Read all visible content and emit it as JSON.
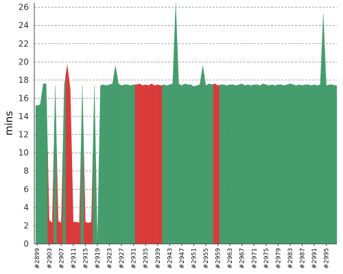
{
  "chart_data": {
    "type": "area",
    "title": "",
    "xlabel": "",
    "ylabel": "mins",
    "ylim": [
      0,
      26.5
    ],
    "yticks": [
      0,
      2,
      4,
      6,
      8,
      10,
      12,
      14,
      16,
      18,
      20,
      22,
      24,
      26
    ],
    "grid": true,
    "legend": "none",
    "colors": {
      "success": "#459c6c",
      "failure": "#d93a3a"
    },
    "x_tick_labels": [
      "#2899",
      "#2903",
      "#2907",
      "#2911",
      "#2915",
      "#2919",
      "#2923",
      "#2927",
      "#2931",
      "#2935",
      "#2939",
      "#2943",
      "#2947",
      "#2951",
      "#2955",
      "#2959",
      "#2963",
      "#2967",
      "#2971",
      "#2975",
      "#2979",
      "#2983",
      "#2987",
      "#2991",
      "#2995"
    ],
    "builds": [
      {
        "x": 2899,
        "y": 15.2,
        "status": "success"
      },
      {
        "x": 2900,
        "y": 15.3,
        "status": "success"
      },
      {
        "x": 2901,
        "y": 17.6,
        "status": "success"
      },
      {
        "x": 2902,
        "y": 17.6,
        "status": "success"
      },
      {
        "x": 2903,
        "y": 2.6,
        "status": "failure"
      },
      {
        "x": 2904,
        "y": 2.3,
        "status": "failure"
      },
      {
        "x": 2905,
        "y": 17.4,
        "status": "success"
      },
      {
        "x": 2906,
        "y": 2.5,
        "status": "failure"
      },
      {
        "x": 2907,
        "y": 2.3,
        "status": "failure"
      },
      {
        "x": 2908,
        "y": 17.5,
        "status": "success"
      },
      {
        "x": 2909,
        "y": 19.7,
        "status": "failure"
      },
      {
        "x": 2910,
        "y": 17.0,
        "status": "failure"
      },
      {
        "x": 2911,
        "y": 2.4,
        "status": "failure"
      },
      {
        "x": 2912,
        "y": 2.4,
        "status": "failure"
      },
      {
        "x": 2913,
        "y": 2.3,
        "status": "failure"
      },
      {
        "x": 2914,
        "y": 17.4,
        "status": "success"
      },
      {
        "x": 2915,
        "y": 2.4,
        "status": "failure"
      },
      {
        "x": 2916,
        "y": 2.3,
        "status": "failure"
      },
      {
        "x": 2917,
        "y": 2.4,
        "status": "failure"
      },
      {
        "x": 2918,
        "y": 17.4,
        "status": "success"
      },
      {
        "x": 2919,
        "y": 0.0,
        "status": "success"
      },
      {
        "x": 2920,
        "y": 17.4,
        "status": "success"
      },
      {
        "x": 2921,
        "y": 17.5,
        "status": "success"
      },
      {
        "x": 2922,
        "y": 17.4,
        "status": "success"
      },
      {
        "x": 2923,
        "y": 17.5,
        "status": "success"
      },
      {
        "x": 2924,
        "y": 17.6,
        "status": "success"
      },
      {
        "x": 2925,
        "y": 19.6,
        "status": "success"
      },
      {
        "x": 2926,
        "y": 17.6,
        "status": "success"
      },
      {
        "x": 2927,
        "y": 17.4,
        "status": "success"
      },
      {
        "x": 2928,
        "y": 17.5,
        "status": "success"
      },
      {
        "x": 2929,
        "y": 17.5,
        "status": "success"
      },
      {
        "x": 2930,
        "y": 17.4,
        "status": "success"
      },
      {
        "x": 2931,
        "y": 17.5,
        "status": "success"
      },
      {
        "x": 2932,
        "y": 17.5,
        "status": "failure"
      },
      {
        "x": 2933,
        "y": 17.6,
        "status": "failure"
      },
      {
        "x": 2934,
        "y": 17.4,
        "status": "failure"
      },
      {
        "x": 2935,
        "y": 17.5,
        "status": "failure"
      },
      {
        "x": 2936,
        "y": 17.4,
        "status": "failure"
      },
      {
        "x": 2937,
        "y": 17.6,
        "status": "failure"
      },
      {
        "x": 2938,
        "y": 17.4,
        "status": "failure"
      },
      {
        "x": 2939,
        "y": 17.5,
        "status": "failure"
      },
      {
        "x": 2940,
        "y": 17.4,
        "status": "failure"
      },
      {
        "x": 2941,
        "y": 17.5,
        "status": "success"
      },
      {
        "x": 2942,
        "y": 17.4,
        "status": "success"
      },
      {
        "x": 2943,
        "y": 17.5,
        "status": "success"
      },
      {
        "x": 2944,
        "y": 17.6,
        "status": "success"
      },
      {
        "x": 2945,
        "y": 26.5,
        "status": "success"
      },
      {
        "x": 2946,
        "y": 17.6,
        "status": "success"
      },
      {
        "x": 2947,
        "y": 17.4,
        "status": "success"
      },
      {
        "x": 2948,
        "y": 17.6,
        "status": "success"
      },
      {
        "x": 2949,
        "y": 17.5,
        "status": "success"
      },
      {
        "x": 2950,
        "y": 17.5,
        "status": "success"
      },
      {
        "x": 2951,
        "y": 17.3,
        "status": "success"
      },
      {
        "x": 2952,
        "y": 17.4,
        "status": "success"
      },
      {
        "x": 2953,
        "y": 17.5,
        "status": "success"
      },
      {
        "x": 2954,
        "y": 19.6,
        "status": "success"
      },
      {
        "x": 2955,
        "y": 17.4,
        "status": "success"
      },
      {
        "x": 2956,
        "y": 17.6,
        "status": "success"
      },
      {
        "x": 2957,
        "y": 17.5,
        "status": "success"
      },
      {
        "x": 2958,
        "y": 17.6,
        "status": "failure"
      },
      {
        "x": 2959,
        "y": 17.4,
        "status": "failure"
      },
      {
        "x": 2960,
        "y": 17.5,
        "status": "success"
      },
      {
        "x": 2961,
        "y": 17.5,
        "status": "success"
      },
      {
        "x": 2962,
        "y": 17.4,
        "status": "success"
      },
      {
        "x": 2963,
        "y": 17.5,
        "status": "success"
      },
      {
        "x": 2964,
        "y": 17.5,
        "status": "success"
      },
      {
        "x": 2965,
        "y": 17.4,
        "status": "success"
      },
      {
        "x": 2966,
        "y": 17.5,
        "status": "success"
      },
      {
        "x": 2967,
        "y": 17.6,
        "status": "success"
      },
      {
        "x": 2968,
        "y": 17.4,
        "status": "success"
      },
      {
        "x": 2969,
        "y": 17.5,
        "status": "success"
      },
      {
        "x": 2970,
        "y": 17.4,
        "status": "success"
      },
      {
        "x": 2971,
        "y": 17.5,
        "status": "success"
      },
      {
        "x": 2972,
        "y": 17.5,
        "status": "success"
      },
      {
        "x": 2973,
        "y": 17.4,
        "status": "success"
      },
      {
        "x": 2974,
        "y": 17.6,
        "status": "success"
      },
      {
        "x": 2975,
        "y": 17.5,
        "status": "success"
      },
      {
        "x": 2976,
        "y": 17.4,
        "status": "success"
      },
      {
        "x": 2977,
        "y": 17.5,
        "status": "success"
      },
      {
        "x": 2978,
        "y": 17.4,
        "status": "success"
      },
      {
        "x": 2979,
        "y": 17.5,
        "status": "success"
      },
      {
        "x": 2980,
        "y": 17.5,
        "status": "success"
      },
      {
        "x": 2981,
        "y": 17.4,
        "status": "success"
      },
      {
        "x": 2982,
        "y": 17.5,
        "status": "success"
      },
      {
        "x": 2983,
        "y": 17.6,
        "status": "success"
      },
      {
        "x": 2984,
        "y": 17.5,
        "status": "success"
      },
      {
        "x": 2985,
        "y": 17.4,
        "status": "success"
      },
      {
        "x": 2986,
        "y": 17.5,
        "status": "success"
      },
      {
        "x": 2987,
        "y": 17.4,
        "status": "success"
      },
      {
        "x": 2988,
        "y": 17.5,
        "status": "success"
      },
      {
        "x": 2989,
        "y": 17.5,
        "status": "success"
      },
      {
        "x": 2990,
        "y": 17.4,
        "status": "success"
      },
      {
        "x": 2991,
        "y": 17.5,
        "status": "success"
      },
      {
        "x": 2992,
        "y": 17.4,
        "status": "success"
      },
      {
        "x": 2993,
        "y": 17.5,
        "status": "success"
      },
      {
        "x": 2994,
        "y": 25.3,
        "status": "success"
      },
      {
        "x": 2995,
        "y": 17.4,
        "status": "success"
      },
      {
        "x": 2996,
        "y": 17.5,
        "status": "success"
      },
      {
        "x": 2997,
        "y": 17.5,
        "status": "success"
      },
      {
        "x": 2998,
        "y": 17.4,
        "status": "success"
      }
    ]
  }
}
